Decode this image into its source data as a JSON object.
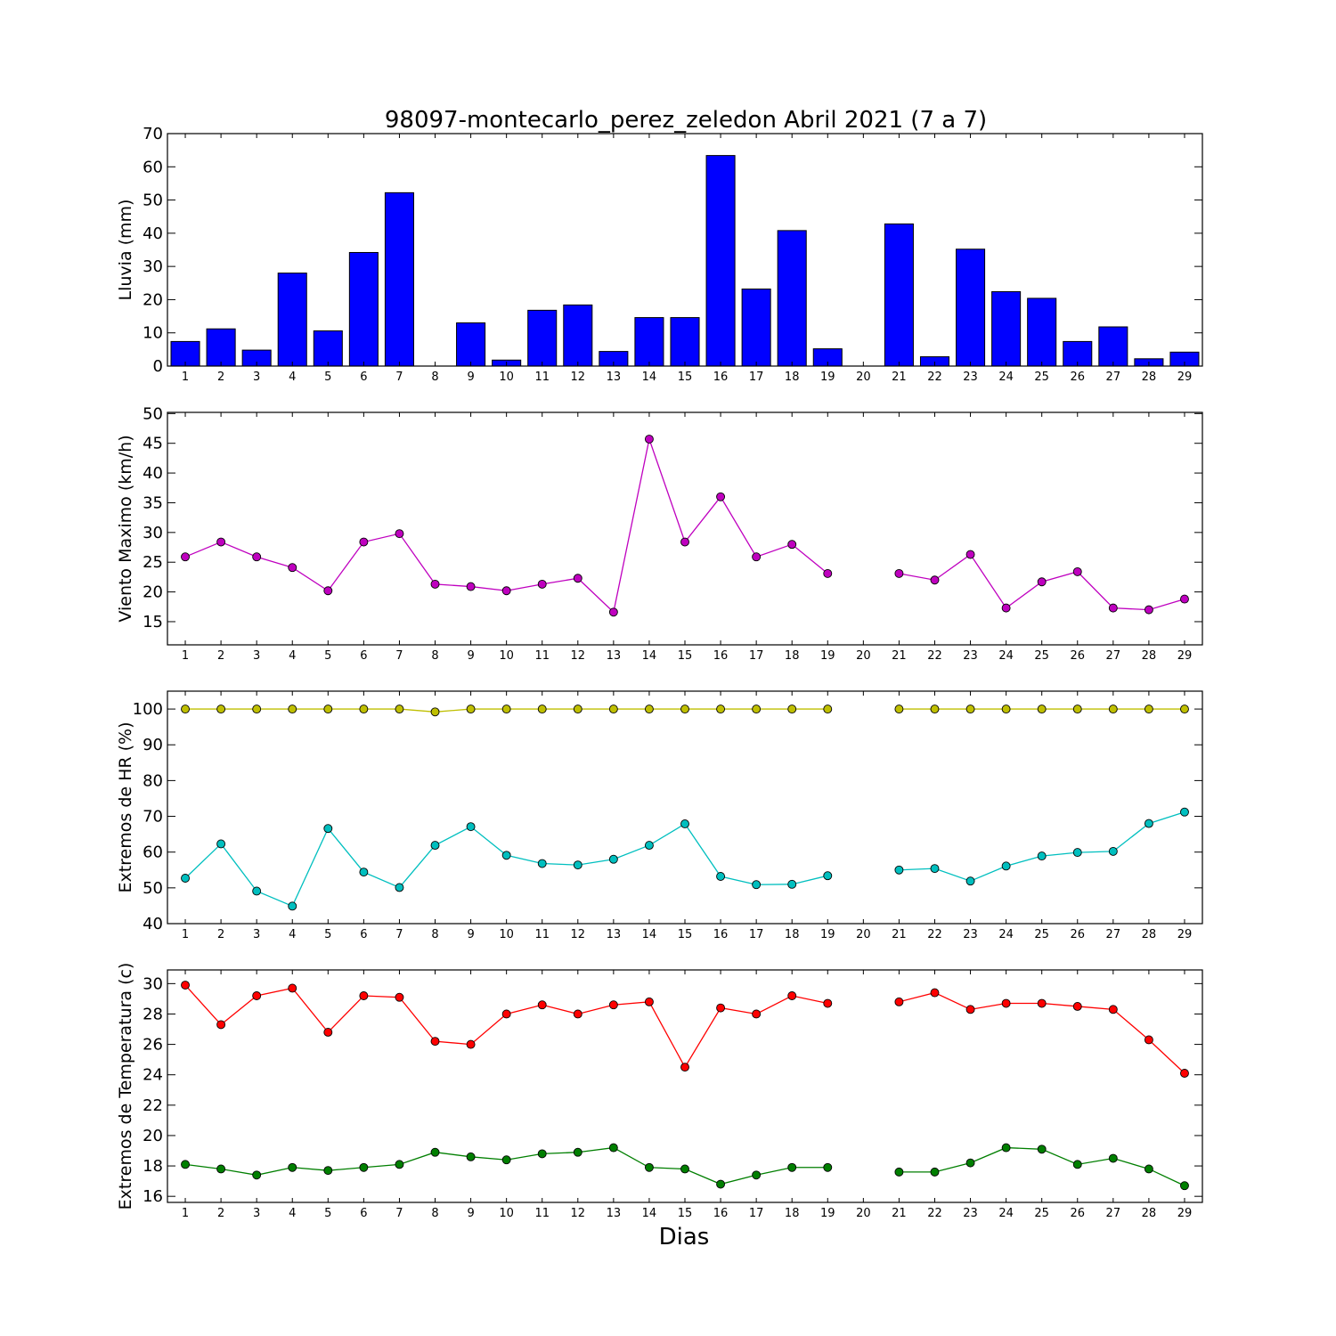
{
  "title": "98097-montecarlo_perez_zeledon Abril 2021  (7 a 7)",
  "xlabel": "Dias",
  "chart_data": [
    {
      "type": "bar",
      "ylabel": "Lluvia (mm)",
      "ylim": [
        0,
        70
      ],
      "yticks": [
        0,
        10,
        20,
        30,
        40,
        50,
        60,
        70
      ],
      "color": "#0000ff",
      "categories": [
        1,
        2,
        3,
        4,
        5,
        6,
        7,
        8,
        9,
        10,
        11,
        12,
        13,
        14,
        15,
        16,
        17,
        18,
        19,
        20,
        21,
        22,
        23,
        24,
        25,
        26,
        27,
        28,
        29
      ],
      "values": [
        7.4,
        11.2,
        4.8,
        28.0,
        10.6,
        34.2,
        52.2,
        0,
        13.0,
        1.8,
        16.8,
        18.4,
        4.4,
        14.6,
        14.6,
        63.4,
        23.2,
        40.8,
        5.2,
        0,
        42.8,
        2.8,
        35.2,
        22.4,
        20.4,
        7.4,
        11.8,
        2.2,
        4.2
      ]
    },
    {
      "type": "line",
      "ylabel": "Viento Maximo (km/h)",
      "ylim": [
        11.1,
        50.2
      ],
      "yticks": [
        15,
        20,
        25,
        30,
        35,
        40,
        45,
        50
      ],
      "series": [
        {
          "color": "#bf00bf",
          "x": [
            1,
            2,
            3,
            4,
            5,
            6,
            7,
            8,
            9,
            10,
            11,
            12,
            13,
            14,
            15,
            16,
            17,
            18,
            19,
            20,
            21,
            22,
            23,
            24,
            25,
            26,
            27,
            28,
            29
          ],
          "values": [
            25.9,
            28.4,
            25.9,
            24.1,
            20.2,
            28.4,
            29.8,
            21.3,
            20.9,
            20.2,
            21.3,
            22.3,
            16.6,
            45.7,
            28.4,
            36.0,
            25.9,
            28.0,
            23.1,
            null,
            23.1,
            22.0,
            26.3,
            17.3,
            21.7,
            23.4,
            17.3,
            17.0,
            18.8
          ]
        }
      ]
    },
    {
      "type": "line",
      "ylabel": "Extremos de HR (%)",
      "ylim": [
        40,
        105
      ],
      "yticks": [
        40,
        50,
        60,
        70,
        80,
        90,
        100
      ],
      "series": [
        {
          "color": "#bfbf00",
          "x": [
            1,
            2,
            3,
            4,
            5,
            6,
            7,
            8,
            9,
            10,
            11,
            12,
            13,
            14,
            15,
            16,
            17,
            18,
            19,
            20,
            21,
            22,
            23,
            24,
            25,
            26,
            27,
            28,
            29
          ],
          "values": [
            100,
            100,
            100,
            100,
            100,
            100,
            100,
            99.2,
            100,
            100,
            100,
            100,
            100,
            100,
            100,
            100,
            100,
            100,
            100,
            null,
            100,
            100,
            100,
            100,
            100,
            100,
            100,
            100,
            100
          ]
        },
        {
          "color": "#00bfbf",
          "x": [
            1,
            2,
            3,
            4,
            5,
            6,
            7,
            8,
            9,
            10,
            11,
            12,
            13,
            14,
            15,
            16,
            17,
            18,
            19,
            20,
            21,
            22,
            23,
            24,
            25,
            26,
            27,
            28,
            29
          ],
          "values": [
            52.7,
            62.3,
            49.1,
            44.9,
            66.6,
            54.4,
            50.1,
            61.9,
            67.1,
            59.1,
            56.8,
            56.4,
            58.0,
            61.9,
            67.9,
            53.2,
            50.9,
            51.0,
            53.4,
            null,
            55.0,
            55.4,
            51.9,
            56.1,
            58.9,
            59.9,
            60.2,
            68.0,
            71.2
          ]
        }
      ]
    },
    {
      "type": "line",
      "ylabel": "Extremos de Temperatura (c)",
      "ylim": [
        15.6,
        30.9
      ],
      "yticks": [
        16,
        18,
        20,
        22,
        24,
        26,
        28,
        30
      ],
      "series": [
        {
          "color": "#ff0000",
          "x": [
            1,
            2,
            3,
            4,
            5,
            6,
            7,
            8,
            9,
            10,
            11,
            12,
            13,
            14,
            15,
            16,
            17,
            18,
            19,
            20,
            21,
            22,
            23,
            24,
            25,
            26,
            27,
            28,
            29
          ],
          "values": [
            29.9,
            27.3,
            29.2,
            29.7,
            26.8,
            29.2,
            29.1,
            26.2,
            26.0,
            28.0,
            28.6,
            28.0,
            28.6,
            28.8,
            24.5,
            28.4,
            28.0,
            29.2,
            28.7,
            null,
            28.8,
            29.4,
            28.3,
            28.7,
            28.7,
            28.5,
            28.3,
            26.3,
            24.1
          ]
        },
        {
          "color": "#007f00",
          "x": [
            1,
            2,
            3,
            4,
            5,
            6,
            7,
            8,
            9,
            10,
            11,
            12,
            13,
            14,
            15,
            16,
            17,
            18,
            19,
            20,
            21,
            22,
            23,
            24,
            25,
            26,
            27,
            28,
            29
          ],
          "values": [
            18.1,
            17.8,
            17.4,
            17.9,
            17.7,
            17.9,
            18.1,
            18.9,
            18.6,
            18.4,
            18.8,
            18.9,
            19.2,
            17.9,
            17.8,
            16.8,
            17.4,
            17.9,
            17.9,
            null,
            17.6,
            17.6,
            18.2,
            19.2,
            19.1,
            18.1,
            18.5,
            17.8,
            16.7
          ]
        }
      ]
    }
  ]
}
